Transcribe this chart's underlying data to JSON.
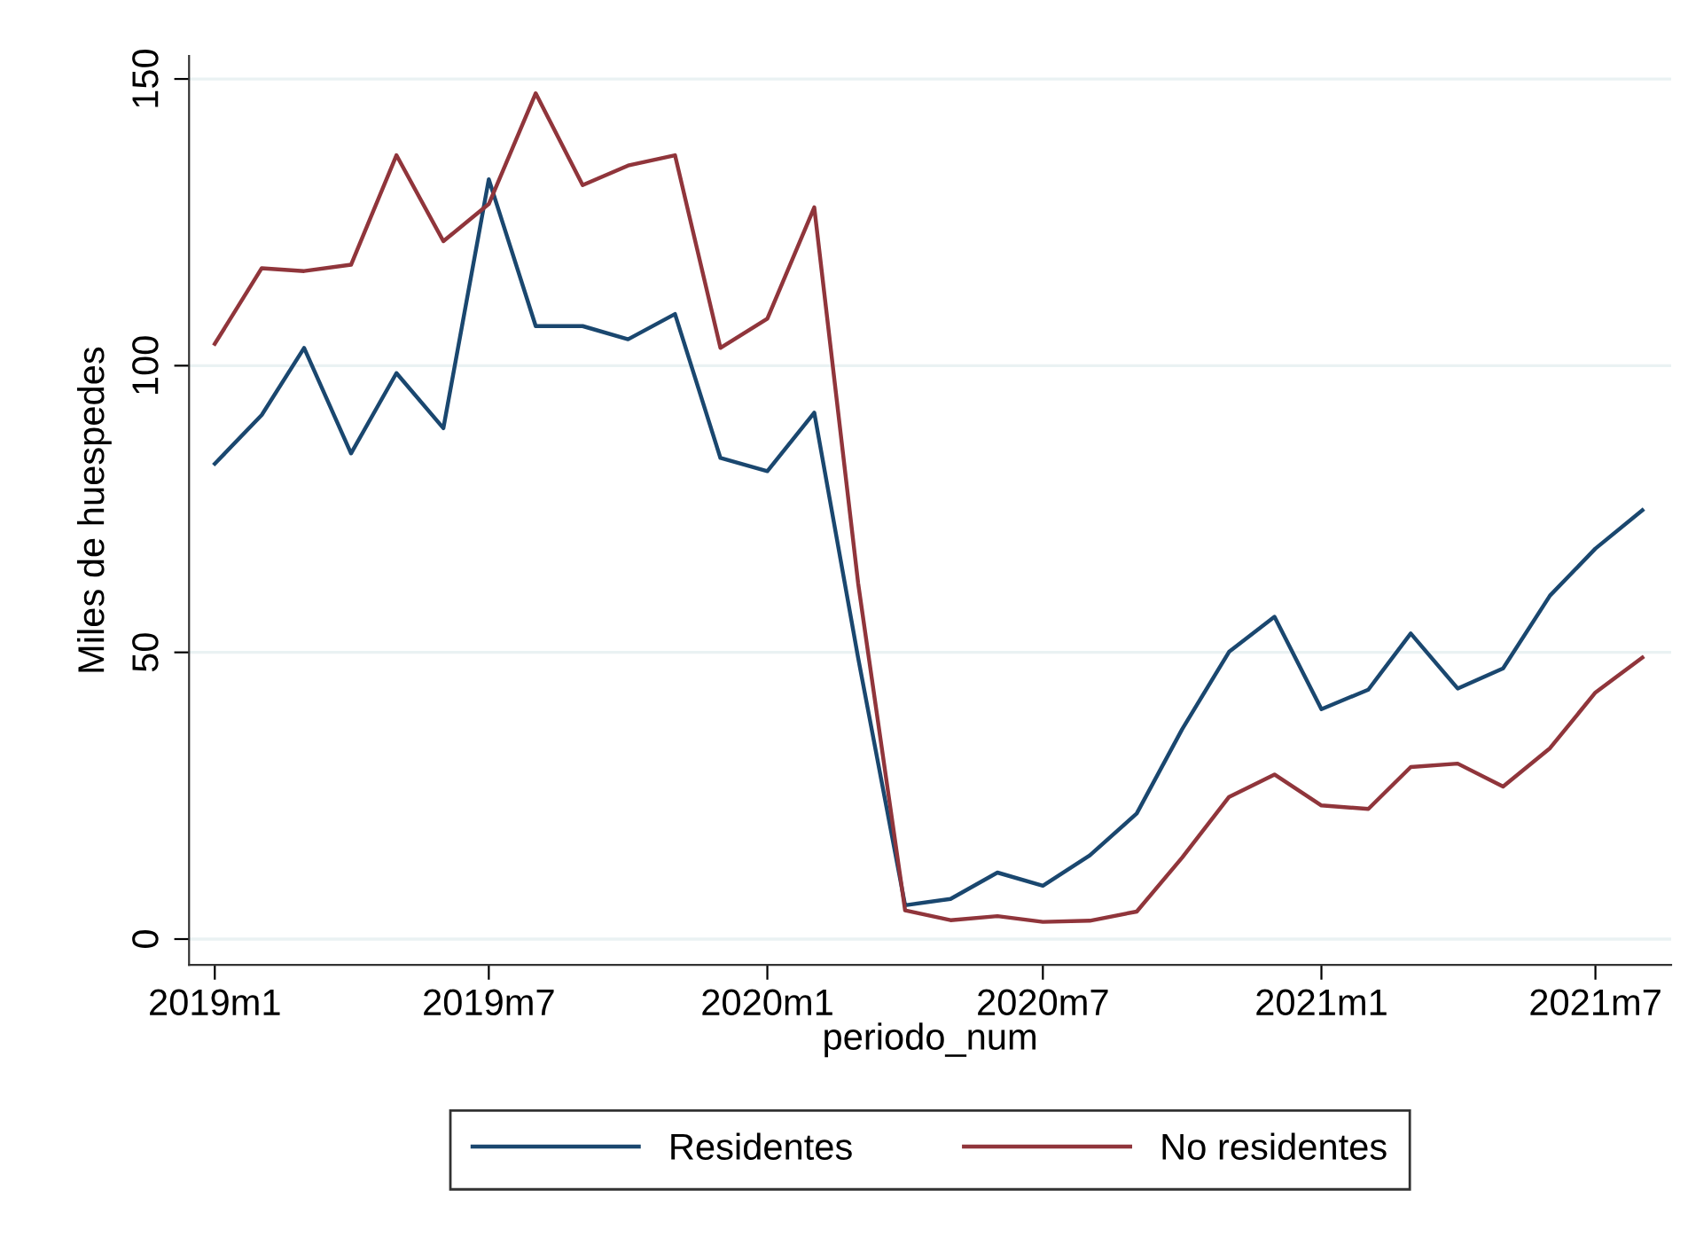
{
  "chart_data": {
    "type": "line",
    "xlabel": "periodo_num",
    "ylabel": "Miles de huespedes",
    "x": [
      "2019-01",
      "2019-02",
      "2019-03",
      "2019-04",
      "2019-05",
      "2019-06",
      "2019-07",
      "2019-08",
      "2019-09",
      "2019-10",
      "2019-11",
      "2019-12",
      "2020-01",
      "2020-02",
      "2020-03",
      "2020-04",
      "2020-05",
      "2020-06",
      "2020-07",
      "2020-08",
      "2020-09",
      "2020-10",
      "2020-11",
      "2020-12",
      "2021-01",
      "2021-02",
      "2021-03",
      "2021-04",
      "2021-05",
      "2021-06",
      "2021-07",
      "2021-08"
    ],
    "series": [
      {
        "name": "Residentes",
        "color": "#1a476f",
        "values": [
          82.9,
          91.4,
          103.1,
          84.7,
          98.7,
          89.1,
          132.5,
          106.9,
          106.9,
          104.6,
          109.0,
          83.9,
          81.6,
          91.8,
          49,
          5.9,
          7.0,
          11.6,
          9.3,
          14.6,
          21.9,
          36.6,
          50.1,
          56.2,
          40.1,
          43.5,
          53.3,
          43.7,
          47.2,
          59.9,
          68.1,
          74.8
        ]
      },
      {
        "name": "No residentes",
        "color": "#90353b",
        "values": [
          103.8,
          117.0,
          116.5,
          117.6,
          136.7,
          121.7,
          128.2,
          147.5,
          131.5,
          134.9,
          136.7,
          103.1,
          108.2,
          127.6,
          62,
          5.0,
          3.3,
          4.0,
          3.0,
          3.2,
          4.8,
          14.2,
          24.8,
          28.7,
          23.3,
          22.7,
          30.0,
          30.6,
          26.6,
          33.3,
          43.0,
          49.1
        ]
      }
    ],
    "xlim": [
      "2018-12-15",
      "2021-08-20"
    ],
    "ylim": [
      -4.5,
      154
    ],
    "xticks": [
      {
        "value": "2019-01",
        "label": "2019m1"
      },
      {
        "value": "2019-07",
        "label": "2019m7"
      },
      {
        "value": "2020-01",
        "label": "2020m1"
      },
      {
        "value": "2020-07",
        "label": "2020m7"
      },
      {
        "value": "2021-01",
        "label": "2021m1"
      },
      {
        "value": "2021-07",
        "label": "2021m7"
      }
    ],
    "yticks": [
      0,
      50,
      100,
      150
    ],
    "grid": "y",
    "legend": "bottom",
    "marker": "none",
    "line_style": "solid"
  }
}
